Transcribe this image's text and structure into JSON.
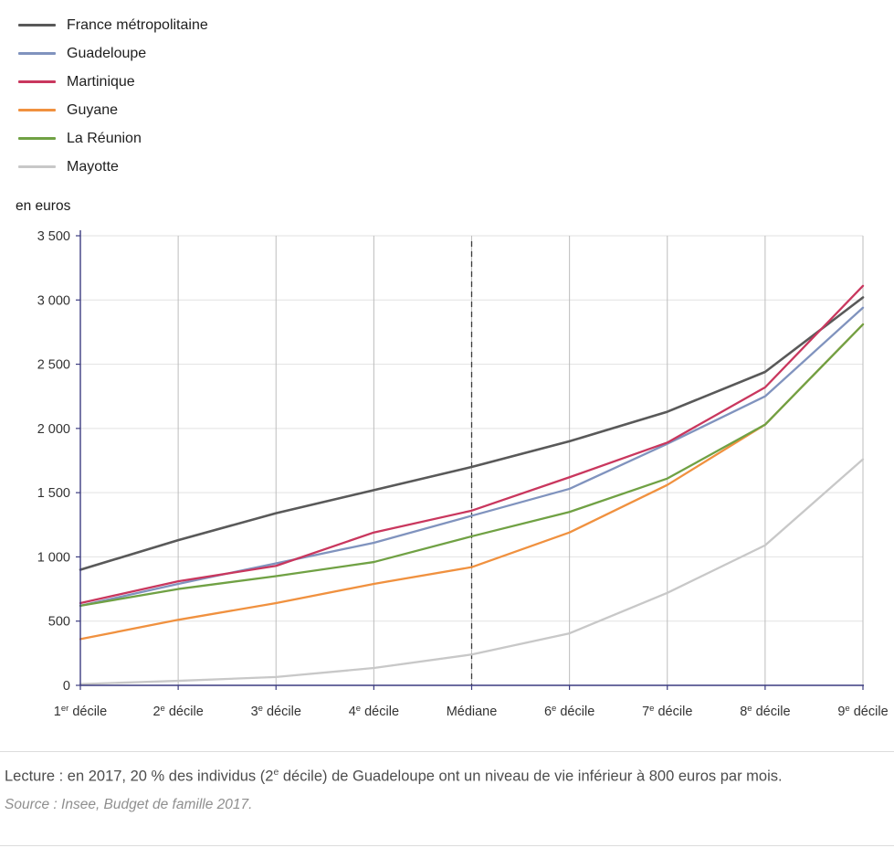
{
  "chart_data": {
    "type": "line",
    "unit_label": "en euros",
    "categories": [
      "1er décile",
      "2e décile",
      "3e décile",
      "4e décile",
      "Médiane",
      "6e décile",
      "7e décile",
      "8e décile",
      "9e décile"
    ],
    "categories_display": [
      {
        "pre": "1",
        "sup": "er",
        "post": " décile"
      },
      {
        "pre": "2",
        "sup": "e",
        "post": " décile"
      },
      {
        "pre": "3",
        "sup": "e",
        "post": " décile"
      },
      {
        "pre": "4",
        "sup": "e",
        "post": " décile"
      },
      {
        "pre": "Médiane",
        "sup": "",
        "post": ""
      },
      {
        "pre": "6",
        "sup": "e",
        "post": " décile"
      },
      {
        "pre": "7",
        "sup": "e",
        "post": " décile"
      },
      {
        "pre": "8",
        "sup": "e",
        "post": " décile"
      },
      {
        "pre": "9",
        "sup": "e",
        "post": " décile"
      }
    ],
    "series": [
      {
        "name": "France métropolitaine",
        "color": "#595959",
        "width": 2.6,
        "values": [
          900,
          1130,
          1340,
          1520,
          1700,
          1900,
          2130,
          2440,
          3020
        ]
      },
      {
        "name": "Guadeloupe",
        "color": "#8093be",
        "width": 2.3,
        "values": [
          620,
          790,
          950,
          1110,
          1320,
          1530,
          1880,
          2250,
          2940
        ]
      },
      {
        "name": "Martinique",
        "color": "#c9375e",
        "width": 2.3,
        "values": [
          640,
          810,
          930,
          1190,
          1360,
          1620,
          1890,
          2320,
          3110
        ]
      },
      {
        "name": "Guyane",
        "color": "#f0913f",
        "width": 2.3,
        "values": [
          360,
          510,
          640,
          790,
          920,
          1190,
          1560,
          2030,
          2810
        ]
      },
      {
        "name": "La Réunion",
        "color": "#70a144",
        "width": 2.3,
        "values": [
          620,
          750,
          850,
          960,
          1160,
          1350,
          1610,
          2030,
          2810
        ]
      },
      {
        "name": "Mayotte",
        "color": "#c8c8c8",
        "width": 2.3,
        "values": [
          10,
          35,
          65,
          135,
          240,
          405,
          720,
          1090,
          1760
        ]
      }
    ],
    "ylim": [
      0,
      3500
    ],
    "yticks": [
      0,
      500,
      1000,
      1500,
      2000,
      2500,
      3000,
      3500
    ],
    "median_index": 4,
    "median_line": "dashed",
    "grid": true,
    "legend_position": "top-left",
    "colors": {
      "axis": "#3c3c80",
      "grid_vertical": "#bdbdbd",
      "grid_horizontal": "#e2e2e2",
      "median": "#3a3a3a"
    }
  },
  "footer": {
    "note_prefix": "Lecture : en 2017, 20 % des individus (2",
    "note_sup": "e",
    "note_suffix": " décile) de Guadeloupe ont un niveau de vie inférieur à 800 euros par mois.",
    "source": "Source : Insee, Budget de famille 2017."
  }
}
